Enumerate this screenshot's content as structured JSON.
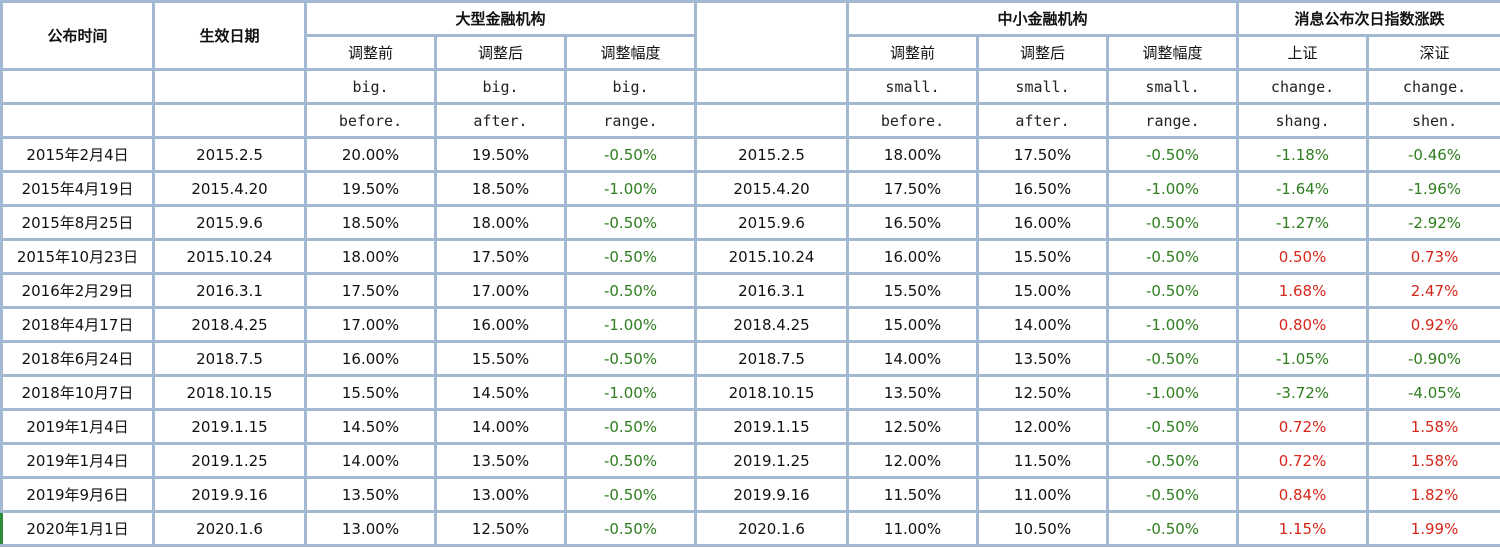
{
  "headers": {
    "publish_time": "公布时间",
    "effective_date": "生效日期",
    "large_group": "大型金融机构",
    "small_group": "中小金融机构",
    "index_group": "消息公布次日指数涨跌",
    "before": "调整前",
    "after": "调整后",
    "range": "调整幅度",
    "shanghai": "上证",
    "shenzhen": "深证"
  },
  "field_names": {
    "big_before_1": "big.",
    "big_before_2": "before.",
    "big_after_1": "big.",
    "big_after_2": "after.",
    "big_range_1": "big.",
    "big_range_2": "range.",
    "small_before_1": "small.",
    "small_before_2": "before.",
    "small_after_1": "small.",
    "small_after_2": "after.",
    "small_range_1": "small.",
    "small_range_2": "range.",
    "shang_1": "change.",
    "shang_2": "shang.",
    "shen_1": "change.",
    "shen_2": "shen."
  },
  "rows": [
    {
      "publish": "2015年2月4日",
      "effective": "2015.2.5",
      "big_before": "20.00%",
      "big_after": "19.50%",
      "big_range": "-0.50%",
      "effective2": "2015.2.5",
      "small_before": "18.00%",
      "small_after": "17.50%",
      "small_range": "-0.50%",
      "shang": "-1.18%",
      "shen": "-0.46%"
    },
    {
      "publish": "2015年4月19日",
      "effective": "2015.4.20",
      "big_before": "19.50%",
      "big_after": "18.50%",
      "big_range": "-1.00%",
      "effective2": "2015.4.20",
      "small_before": "17.50%",
      "small_after": "16.50%",
      "small_range": "-1.00%",
      "shang": "-1.64%",
      "shen": "-1.96%"
    },
    {
      "publish": "2015年8月25日",
      "effective": "2015.9.6",
      "big_before": "18.50%",
      "big_after": "18.00%",
      "big_range": "-0.50%",
      "effective2": "2015.9.6",
      "small_before": "16.50%",
      "small_after": "16.00%",
      "small_range": "-0.50%",
      "shang": "-1.27%",
      "shen": "-2.92%"
    },
    {
      "publish": "2015年10月23日",
      "effective": "2015.10.24",
      "big_before": "18.00%",
      "big_after": "17.50%",
      "big_range": "-0.50%",
      "effective2": "2015.10.24",
      "small_before": "16.00%",
      "small_after": "15.50%",
      "small_range": "-0.50%",
      "shang": "0.50%",
      "shen": "0.73%"
    },
    {
      "publish": "2016年2月29日",
      "effective": "2016.3.1",
      "big_before": "17.50%",
      "big_after": "17.00%",
      "big_range": "-0.50%",
      "effective2": "2016.3.1",
      "small_before": "15.50%",
      "small_after": "15.00%",
      "small_range": "-0.50%",
      "shang": "1.68%",
      "shen": "2.47%"
    },
    {
      "publish": "2018年4月17日",
      "effective": "2018.4.25",
      "big_before": "17.00%",
      "big_after": "16.00%",
      "big_range": "-1.00%",
      "effective2": "2018.4.25",
      "small_before": "15.00%",
      "small_after": "14.00%",
      "small_range": "-1.00%",
      "shang": "0.80%",
      "shen": "0.92%"
    },
    {
      "publish": "2018年6月24日",
      "effective": "2018.7.5",
      "big_before": "16.00%",
      "big_after": "15.50%",
      "big_range": "-0.50%",
      "effective2": "2018.7.5",
      "small_before": "14.00%",
      "small_after": "13.50%",
      "small_range": "-0.50%",
      "shang": "-1.05%",
      "shen": "-0.90%"
    },
    {
      "publish": "2018年10月7日",
      "effective": "2018.10.15",
      "big_before": "15.50%",
      "big_after": "14.50%",
      "big_range": "-1.00%",
      "effective2": "2018.10.15",
      "small_before": "13.50%",
      "small_after": "12.50%",
      "small_range": "-1.00%",
      "shang": "-3.72%",
      "shen": "-4.05%"
    },
    {
      "publish": "2019年1月4日",
      "effective": "2019.1.15",
      "big_before": "14.50%",
      "big_after": "14.00%",
      "big_range": "-0.50%",
      "effective2": "2019.1.15",
      "small_before": "12.50%",
      "small_after": "12.00%",
      "small_range": "-0.50%",
      "shang": "0.72%",
      "shen": "1.58%"
    },
    {
      "publish": "2019年1月4日",
      "effective": "2019.1.25",
      "big_before": "14.00%",
      "big_after": "13.50%",
      "big_range": "-0.50%",
      "effective2": "2019.1.25",
      "small_before": "12.00%",
      "small_after": "11.50%",
      "small_range": "-0.50%",
      "shang": "0.72%",
      "shen": "1.58%"
    },
    {
      "publish": "2019年9月6日",
      "effective": "2019.9.16",
      "big_before": "13.50%",
      "big_after": "13.00%",
      "big_range": "-0.50%",
      "effective2": "2019.9.16",
      "small_before": "11.50%",
      "small_after": "11.00%",
      "small_range": "-0.50%",
      "shang": "0.84%",
      "shen": "1.82%"
    },
    {
      "publish": "2020年1月1日",
      "effective": "2020.1.6",
      "big_before": "13.00%",
      "big_after": "12.50%",
      "big_range": "-0.50%",
      "effective2": "2020.1.6",
      "small_before": "11.00%",
      "small_after": "10.50%",
      "small_range": "-0.50%",
      "shang": "1.15%",
      "shen": "1.99%"
    }
  ],
  "colors": {
    "grid": "#a3b9d2",
    "negative": "#2e7d1e",
    "positive": "#d6271a"
  }
}
